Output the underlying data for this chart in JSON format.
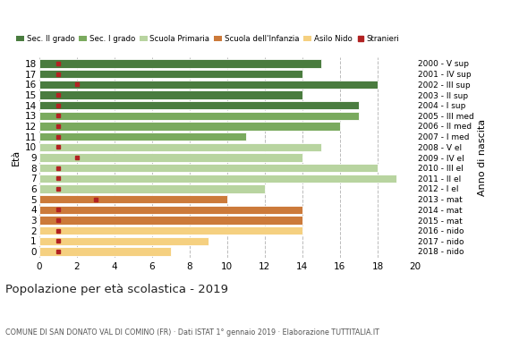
{
  "ages": [
    18,
    17,
    16,
    15,
    14,
    13,
    12,
    11,
    10,
    9,
    8,
    7,
    6,
    5,
    4,
    3,
    2,
    1,
    0
  ],
  "years": [
    "2000 - V sup",
    "2001 - IV sup",
    "2002 - III sup",
    "2003 - II sup",
    "2004 - I sup",
    "2005 - III med",
    "2006 - II med",
    "2007 - I med",
    "2008 - V el",
    "2009 - IV el",
    "2010 - III el",
    "2011 - II el",
    "2012 - I el",
    "2013 - mat",
    "2014 - mat",
    "2015 - mat",
    "2016 - nido",
    "2017 - nido",
    "2018 - nido"
  ],
  "bar_values": [
    15,
    14,
    18,
    14,
    17,
    17,
    16,
    11,
    15,
    14,
    18,
    19,
    12,
    10,
    14,
    14,
    14,
    9,
    7
  ],
  "bar_colors": [
    "#4a7c3f",
    "#4a7c3f",
    "#4a7c3f",
    "#4a7c3f",
    "#4a7c3f",
    "#7aaa5e",
    "#7aaa5e",
    "#7aaa5e",
    "#b8d4a0",
    "#b8d4a0",
    "#b8d4a0",
    "#b8d4a0",
    "#b8d4a0",
    "#cc7a3a",
    "#cc7a3a",
    "#cc7a3a",
    "#f5d080",
    "#f5d080",
    "#f5d080"
  ],
  "stranieri_values": [
    1,
    1,
    2,
    1,
    1,
    1,
    1,
    1,
    1,
    2,
    1,
    1,
    1,
    3,
    1,
    1,
    1,
    1,
    1
  ],
  "stranieri_color": "#b22222",
  "title": "Popolazione per età scolastica - 2019",
  "subtitle": "COMUNE DI SAN DONATO VAL DI COMINO (FR) · Dati ISTAT 1° gennaio 2019 · Elaborazione TUTTITALIA.IT",
  "ylabel_left": "Età",
  "ylabel_right": "Anno di nascita",
  "legend_labels": [
    "Sec. II grado",
    "Sec. I grado",
    "Scuola Primaria",
    "Scuola dell'Infanzia",
    "Asilo Nido",
    "Stranieri"
  ],
  "legend_colors": [
    "#4a7c3f",
    "#7aaa5e",
    "#b8d4a0",
    "#cc7a3a",
    "#f5d080",
    "#b22222"
  ],
  "xlim": [
    0,
    20
  ],
  "xticks": [
    0,
    2,
    4,
    6,
    8,
    10,
    12,
    14,
    16,
    18,
    20
  ],
  "background_color": "#ffffff",
  "grid_color": "#bbbbbb"
}
